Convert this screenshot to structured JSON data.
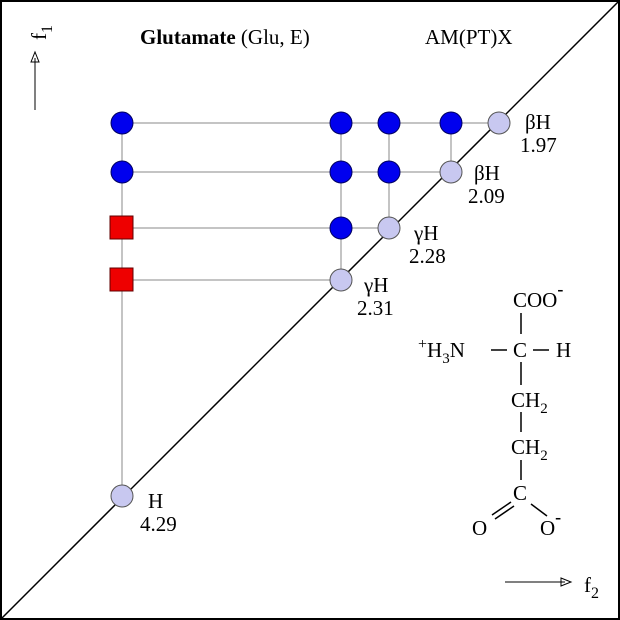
{
  "title": {
    "name": "Glutamate",
    "code": "(Glu, E)",
    "scheme": "AM(PT)X"
  },
  "axes": {
    "f1": "f",
    "f1_sub": "1",
    "f2": "f",
    "f2_sub": "2"
  },
  "peaks": [
    {
      "label": "βH",
      "shift": 1.97
    },
    {
      "label": "βH",
      "shift": 2.09
    },
    {
      "label": "γH",
      "shift": 2.28
    },
    {
      "label": "γH",
      "shift": 2.31
    },
    {
      "label": "H",
      "shift": 4.29
    }
  ],
  "structure": {
    "carboxyl": "COO",
    "carboxyl_charge": "-",
    "amine_charge": "+",
    "amine_h": "H",
    "amine_sub": "3",
    "amine_n": "N",
    "alpha_c": "C",
    "alpha_h": "H",
    "ch2_1": "CH",
    "ch2_1_sub": "2",
    "ch2_2": "CH",
    "ch2_2_sub": "2",
    "side_c": "C",
    "o_left": "O",
    "o_right": "O",
    "o_charge": "-"
  }
}
